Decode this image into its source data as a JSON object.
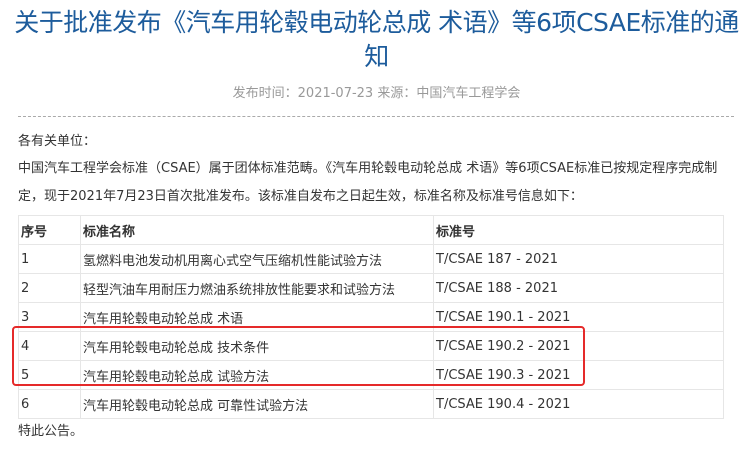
{
  "article": {
    "title": "关于批准发布《汽车用轮毂电动轮总成 术语》等6项CSAE标准的通知",
    "meta": "发布时间：2021-07-23 来源：中国汽车工程学会",
    "salutation": "各有关单位：",
    "body": "中国汽车工程学会标准（CSAE）属于团体标准范畴。《汽车用轮毂电动轮总成  术语》等6项CSAE标准已按规定程序完成制定，现于2021年7月23日首次批准发布。该标准自发布之日起生效，标准名称及标准号信息如下：",
    "closing": "特此公告。"
  },
  "table": {
    "headers": [
      "序号",
      "标准名称",
      "标准号"
    ],
    "rows": [
      [
        "1",
        "氢燃料电池发动机用离心式空气压缩机性能试验方法",
        "T/CSAE 187 - 2021"
      ],
      [
        "2",
        "轻型汽油车用耐压力燃油系统排放性能要求和试验方法",
        "T/CSAE 188 - 2021"
      ],
      [
        "3",
        "汽车用轮毂电动轮总成  术语",
        "T/CSAE 190.1 - 2021"
      ],
      [
        "4",
        "汽车用轮毂电动轮总成  技术条件",
        "T/CSAE 190.2 - 2021"
      ],
      [
        "5",
        "汽车用轮毂电动轮总成  试验方法",
        "T/CSAE 190.3 - 2021"
      ],
      [
        "6",
        "汽车用轮毂电动轮总成  可靠性试验方法",
        "T/CSAE 190.4 - 2021"
      ]
    ]
  },
  "colors": {
    "title": "#1d5c9c",
    "highlight_box": "#e52a2a"
  }
}
